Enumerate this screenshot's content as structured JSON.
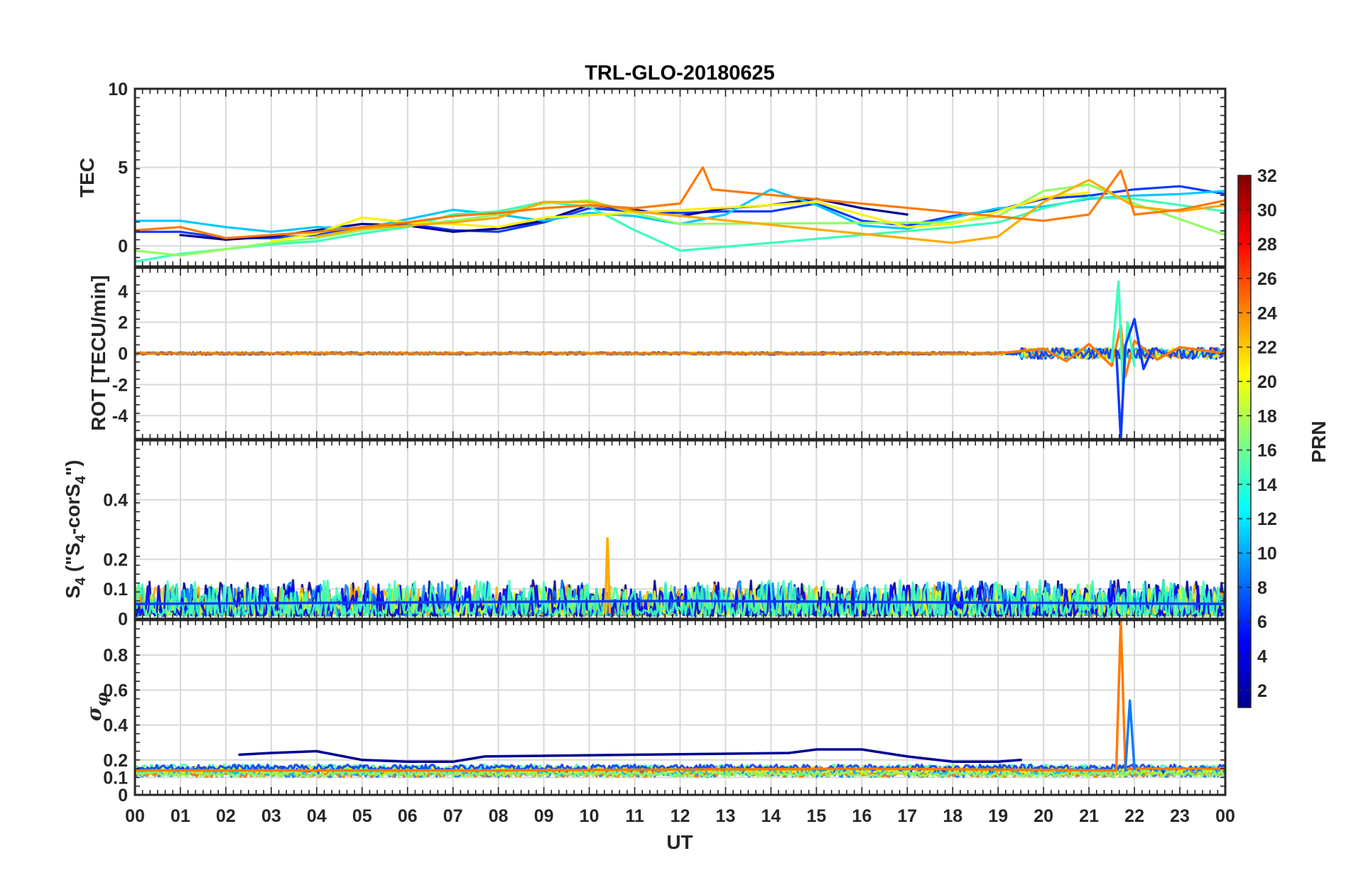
{
  "chart_data": {
    "type": "line",
    "title": "TRL-GLO-20180625",
    "xlabel": "UT",
    "x_tick_labels": [
      "00",
      "01",
      "02",
      "03",
      "04",
      "05",
      "06",
      "07",
      "08",
      "09",
      "10",
      "11",
      "12",
      "13",
      "14",
      "15",
      "16",
      "17",
      "18",
      "19",
      "20",
      "21",
      "22",
      "23",
      "00"
    ],
    "xlim": [
      0,
      24
    ],
    "grid": true,
    "colorbar": {
      "label": "PRN",
      "range": [
        1,
        32
      ],
      "ticks": [
        "2",
        "4",
        "6",
        "8",
        "10",
        "12",
        "14",
        "16",
        "18",
        "20",
        "22",
        "24",
        "26",
        "28",
        "30",
        "32"
      ],
      "colormap": "jet",
      "placement": "right"
    },
    "panels": [
      {
        "ylabel": "TEC",
        "ylim": [
          -1.3,
          10
        ],
        "y_tick_labels": [
          "10",
          "5",
          "0"
        ],
        "series": [
          {
            "prn": 5,
            "color": "#0a3bff",
            "points": [
              [
                0,
                0.9
              ],
              [
                1,
                0.9
              ],
              [
                2,
                0.5
              ],
              [
                3,
                0.5
              ],
              [
                4,
                0.7
              ],
              [
                5,
                1.2
              ],
              [
                6,
                1.4
              ],
              [
                7,
                1.0
              ],
              [
                8,
                0.9
              ],
              [
                9,
                1.5
              ],
              [
                10,
                2.4
              ],
              [
                11,
                2.2
              ],
              [
                12,
                2.1
              ],
              [
                13,
                2.2
              ],
              [
                14,
                2.2
              ],
              [
                15,
                2.7
              ],
              [
                16,
                1.6
              ],
              [
                17,
                1.3
              ],
              [
                18,
                1.9
              ],
              [
                19,
                2.3
              ],
              [
                20,
                3.0
              ],
              [
                21,
                3.2
              ],
              [
                22,
                3.6
              ],
              [
                23,
                3.8
              ],
              [
                24,
                3.3
              ]
            ]
          },
          {
            "prn": 2,
            "color": "#00008f",
            "points": [
              [
                1,
                0.7
              ],
              [
                2,
                0.4
              ],
              [
                3,
                0.6
              ],
              [
                4,
                1.0
              ],
              [
                5,
                1.4
              ],
              [
                6,
                1.3
              ],
              [
                7,
                0.9
              ],
              [
                8,
                1.1
              ],
              [
                9,
                1.6
              ],
              [
                10,
                2.6
              ],
              [
                11,
                2.3
              ],
              [
                12,
                1.9
              ],
              [
                13,
                2.4
              ],
              [
                14,
                2.6
              ],
              [
                15,
                3.0
              ],
              [
                16,
                2.4
              ],
              [
                17,
                2.0
              ]
            ]
          },
          {
            "prn": 12,
            "color": "#00c8ff",
            "points": [
              [
                0,
                1.6
              ],
              [
                1,
                1.6
              ],
              [
                2,
                1.2
              ],
              [
                3,
                0.9
              ],
              [
                4,
                1.2
              ],
              [
                5,
                1.1
              ],
              [
                6,
                1.7
              ],
              [
                7,
                2.3
              ],
              [
                8,
                2.0
              ],
              [
                9,
                1.6
              ],
              [
                10,
                2.1
              ],
              [
                11,
                1.9
              ],
              [
                12,
                1.4
              ],
              [
                13,
                2.0
              ],
              [
                14,
                3.6
              ],
              [
                15,
                2.6
              ],
              [
                16,
                1.3
              ],
              [
                17,
                1.1
              ],
              [
                18,
                1.8
              ],
              [
                19,
                2.4
              ],
              [
                20,
                2.5
              ],
              [
                21,
                3.0
              ],
              [
                22,
                3.2
              ],
              [
                23,
                3.3
              ],
              [
                24,
                3.5
              ]
            ]
          },
          {
            "prn": 15,
            "color": "#3cffb8",
            "points": [
              [
                0,
                -1.0
              ],
              [
                1,
                -0.5
              ],
              [
                2,
                -0.2
              ],
              [
                3,
                0.1
              ],
              [
                4,
                0.3
              ],
              [
                5,
                0.8
              ],
              [
                6,
                1.2
              ],
              [
                7,
                2.0
              ],
              [
                8,
                2.2
              ],
              [
                9,
                2.8
              ],
              [
                10,
                2.5
              ],
              [
                11,
                1.0
              ],
              [
                12,
                -0.3
              ],
              [
                18,
                1.2
              ],
              [
                19,
                1.5
              ],
              [
                20,
                2.4
              ],
              [
                21,
                3.1
              ],
              [
                22,
                3.0
              ],
              [
                23,
                2.6
              ],
              [
                24,
                2.2
              ]
            ]
          },
          {
            "prn": 17,
            "color": "#90ff60",
            "points": [
              [
                0,
                -0.3
              ],
              [
                1,
                -0.6
              ],
              [
                2,
                -0.2
              ],
              [
                3,
                0.2
              ],
              [
                4,
                0.5
              ],
              [
                5,
                1.0
              ],
              [
                6,
                1.3
              ],
              [
                7,
                1.6
              ],
              [
                8,
                2.0
              ],
              [
                9,
                2.7
              ],
              [
                10,
                2.9
              ],
              [
                11,
                2.1
              ],
              [
                12,
                1.4
              ],
              [
                18,
                1.5
              ],
              [
                19,
                1.9
              ],
              [
                20,
                3.5
              ],
              [
                21,
                3.9
              ],
              [
                22,
                2.7
              ],
              [
                23,
                1.7
              ],
              [
                24,
                0.7
              ]
            ]
          },
          {
            "prn": 20,
            "color": "#fff000",
            "points": [
              [
                3,
                0.3
              ],
              [
                4,
                0.8
              ],
              [
                5,
                1.8
              ],
              [
                6,
                1.5
              ],
              [
                7,
                1.4
              ],
              [
                8,
                1.2
              ],
              [
                9,
                1.8
              ],
              [
                14,
                2.6
              ],
              [
                15,
                2.8
              ],
              [
                16,
                2.0
              ],
              [
                17,
                1.2
              ],
              [
                18,
                1.4
              ],
              [
                19,
                2.2
              ],
              [
                20,
                3.1
              ],
              [
                21,
                3.4
              ]
            ]
          },
          {
            "prn": 22,
            "color": "#ffaa00",
            "points": [
              [
                4,
                0.6
              ],
              [
                5,
                1.1
              ],
              [
                6,
                1.3
              ],
              [
                7,
                1.5
              ],
              [
                8,
                1.8
              ],
              [
                9,
                2.8
              ],
              [
                10,
                2.8
              ],
              [
                11,
                2.2
              ],
              [
                18,
                0.2
              ],
              [
                19,
                0.6
              ],
              [
                20,
                2.8
              ],
              [
                21,
                4.2
              ],
              [
                22,
                2.5
              ],
              [
                23,
                2.2
              ],
              [
                24,
                2.6
              ]
            ]
          },
          {
            "prn": 24,
            "color": "#ff7a00",
            "points": [
              [
                0,
                1.0
              ],
              [
                1,
                1.2
              ],
              [
                2,
                0.5
              ],
              [
                3,
                0.7
              ],
              [
                4,
                0.9
              ],
              [
                5,
                1.2
              ],
              [
                6,
                1.5
              ],
              [
                7,
                1.9
              ],
              [
                8,
                2.1
              ],
              [
                9,
                2.4
              ],
              [
                10,
                2.6
              ],
              [
                11,
                2.4
              ],
              [
                12,
                2.7
              ],
              [
                12.5,
                5.0
              ],
              [
                12.7,
                3.6
              ],
              [
                20,
                1.6
              ],
              [
                21,
                2.0
              ],
              [
                21.7,
                4.8
              ],
              [
                22,
                2.0
              ],
              [
                23,
                2.3
              ],
              [
                24,
                2.9
              ]
            ]
          }
        ]
      },
      {
        "ylabel": "ROT [TECU/min]",
        "ylim": [
          -5.5,
          5.5
        ],
        "y_tick_labels": [
          "4",
          "2",
          "0",
          "-2",
          "-4"
        ],
        "series": [
          {
            "prn": 24,
            "color": "#ff7a00",
            "points": [
              [
                0,
                0
              ],
              [
                19,
                0
              ],
              [
                20,
                0.3
              ],
              [
                20.5,
                -0.5
              ],
              [
                21,
                0.6
              ],
              [
                21.5,
                -0.8
              ],
              [
                21.7,
                1.8
              ],
              [
                21.8,
                -1.5
              ],
              [
                22,
                0.8
              ],
              [
                22.5,
                -0.4
              ],
              [
                23,
                0.4
              ],
              [
                24,
                0
              ]
            ]
          },
          {
            "prn": 15,
            "color": "#3cffb8",
            "points": [
              [
                21.5,
                -0.5
              ],
              [
                21.65,
                4.6
              ],
              [
                21.75,
                -2.5
              ],
              [
                21.85,
                2.0
              ],
              [
                22,
                -0.8
              ]
            ]
          },
          {
            "prn": 5,
            "color": "#0a3bff",
            "points": [
              [
                21.6,
                0.2
              ],
              [
                21.7,
                -5.5
              ],
              [
                21.8,
                0.5
              ],
              [
                22,
                2.2
              ],
              [
                22.2,
                -1.0
              ],
              [
                22.4,
                0.3
              ]
            ]
          }
        ]
      },
      {
        "ylabel": "S4 (\"S4-corS4\")",
        "ylim": [
          0,
          0.6
        ],
        "y_tick_labels": [
          "0.4",
          "0.2",
          "0.1",
          "0"
        ],
        "series": [
          {
            "prn": 22,
            "color": "#ffaa00",
            "points": [
              [
                10.35,
                0.02
              ],
              [
                10.4,
                0.27
              ],
              [
                10.45,
                0.02
              ]
            ]
          },
          {
            "prn": 5,
            "color": "#0a3bff",
            "points": [
              [
                0,
                0.05
              ],
              [
                12,
                0.06
              ],
              [
                24,
                0.05
              ]
            ]
          }
        ]
      },
      {
        "ylabel": "σφ",
        "ylim": [
          0,
          1
        ],
        "y_tick_labels": [
          "0.8",
          "0.6",
          "0.4",
          "0.2",
          "0.1",
          "0"
        ],
        "series": [
          {
            "prn": 2,
            "color": "#00008f",
            "points": [
              [
                2.3,
                0.23
              ],
              [
                3,
                0.24
              ],
              [
                4,
                0.25
              ],
              [
                5,
                0.2
              ],
              [
                6,
                0.19
              ],
              [
                7,
                0.19
              ],
              [
                7.7,
                0.22
              ],
              [
                14.4,
                0.24
              ],
              [
                15,
                0.26
              ],
              [
                16,
                0.26
              ],
              [
                17,
                0.22
              ],
              [
                18,
                0.19
              ],
              [
                19,
                0.19
              ],
              [
                19.5,
                0.2
              ]
            ]
          },
          {
            "prn": 24,
            "color": "#ff7a00",
            "points": [
              [
                0,
                0.14
              ],
              [
                8,
                0.14
              ],
              [
                16,
                0.15
              ],
              [
                21.6,
                0.14
              ],
              [
                21.7,
                1.0
              ],
              [
                21.8,
                0.15
              ],
              [
                24,
                0.15
              ]
            ]
          },
          {
            "prn": 8,
            "color": "#0a7cff",
            "points": [
              [
                21.8,
                0.14
              ],
              [
                21.9,
                0.54
              ],
              [
                22.0,
                0.15
              ]
            ]
          }
        ]
      }
    ]
  }
}
